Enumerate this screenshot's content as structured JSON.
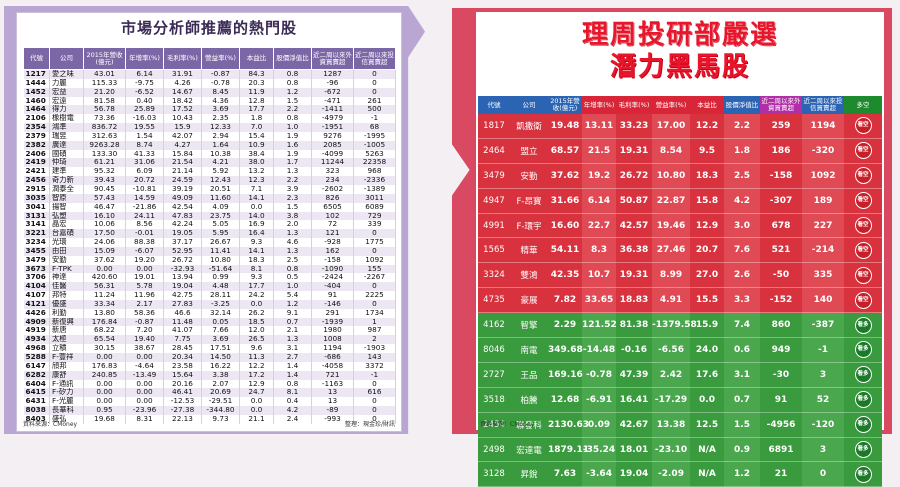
{
  "left": {
    "title": "市場分析師推薦的熱門股",
    "headers": [
      "代號",
      "公司",
      "2015年營收(億元)",
      "年增率(%)",
      "毛利率(%)",
      "營益率(%)",
      "本益比",
      "股價淨值比",
      "近二周以來外資買賣超",
      "近二周以來投信買賣超"
    ],
    "rows": [
      [
        "1217",
        "愛之味",
        "43.01",
        "6.14",
        "31.91",
        "-0.87",
        "84.3",
        "0.8",
        "1287",
        "0"
      ],
      [
        "1444",
        "力麗",
        "115.33",
        "-9.75",
        "4.26",
        "-0.78",
        "20.3",
        "0.8",
        "-96",
        "0"
      ],
      [
        "1452",
        "宏益",
        "21.20",
        "-6.52",
        "14.67",
        "8.45",
        "11.9",
        "1.2",
        "-672",
        "0"
      ],
      [
        "1460",
        "宏遠",
        "81.58",
        "0.40",
        "18.42",
        "4.36",
        "12.8",
        "1.5",
        "-471",
        "261"
      ],
      [
        "1464",
        "得力",
        "56.78",
        "25.89",
        "17.52",
        "3.69",
        "17.7",
        "2.2",
        "-1411",
        "500"
      ],
      [
        "2106",
        "橡樹電",
        "73.36",
        "-16.03",
        "10.43",
        "2.35",
        "1.8",
        "0.8",
        "-4979",
        "-1"
      ],
      [
        "2354",
        "鴻準",
        "836.72",
        "19.55",
        "15.9",
        "12.33",
        "7.0",
        "1.0",
        "-1951",
        "68"
      ],
      [
        "2379",
        "瑞昱",
        "312.63",
        "1.54",
        "42.07",
        "2.94",
        "15.4",
        "1.9",
        "9276",
        "-1995"
      ],
      [
        "2382",
        "廣達",
        "9263.28",
        "8.74",
        "4.27",
        "1.64",
        "10.9",
        "1.6",
        "2085",
        "-1005"
      ],
      [
        "2406",
        "國碩",
        "133.30",
        "41.33",
        "15.84",
        "10.38",
        "38.4",
        "1.9",
        "-4099",
        "5263"
      ],
      [
        "2419",
        "仲琦",
        "61.21",
        "31.06",
        "21.54",
        "4.21",
        "38.0",
        "1.7",
        "11244",
        "22358"
      ],
      [
        "2421",
        "建準",
        "95.32",
        "6.09",
        "21.14",
        "5.92",
        "13.2",
        "1.3",
        "323",
        "968"
      ],
      [
        "2456",
        "奇力新",
        "39.43",
        "20.72",
        "24.59",
        "12.43",
        "12.3",
        "2.2",
        "234",
        "-2336"
      ],
      [
        "2915",
        "潤泰全",
        "90.45",
        "-10.81",
        "39.19",
        "20.51",
        "7.1",
        "3.9",
        "-2602",
        "-1389"
      ],
      [
        "3035",
        "智原",
        "57.43",
        "14.59",
        "49.09",
        "11.60",
        "14.1",
        "2.3",
        "826",
        "3011"
      ],
      [
        "3041",
        "揚智",
        "46.47",
        "-21.86",
        "42.54",
        "4.09",
        "0.0",
        "1.5",
        "6505",
        "6089"
      ],
      [
        "3131",
        "弘塑",
        "16.10",
        "24.11",
        "47.83",
        "23.75",
        "14.0",
        "3.8",
        "102",
        "729"
      ],
      [
        "3141",
        "晶宏",
        "10.06",
        "8.56",
        "42.24",
        "5.05",
        "16.9",
        "2.0",
        "72",
        "339"
      ],
      [
        "3221",
        "台嘉碩",
        "17.50",
        "-0.01",
        "19.05",
        "5.95",
        "16.4",
        "1.3",
        "121",
        "0"
      ],
      [
        "3234",
        "光環",
        "24.06",
        "88.38",
        "37.17",
        "26.67",
        "9.3",
        "4.6",
        "-928",
        "1775"
      ],
      [
        "3455",
        "由田",
        "15.09",
        "-6.07",
        "52.95",
        "11.41",
        "14.1",
        "1.3",
        "162",
        "0"
      ],
      [
        "3479",
        "安勤",
        "37.62",
        "19.20",
        "26.72",
        "10.80",
        "18.3",
        "2.5",
        "-158",
        "1092"
      ],
      [
        "3673",
        "F-TPK",
        "0.00",
        "0.00",
        "-32.93",
        "-51.64",
        "8.1",
        "0.8",
        "-1090",
        "155"
      ],
      [
        "3706",
        "神達",
        "420.60",
        "19.01",
        "13.94",
        "0.99",
        "9.3",
        "0.5",
        "-2424",
        "-2267"
      ],
      [
        "4104",
        "佳醫",
        "56.31",
        "5.78",
        "19.04",
        "4.48",
        "17.7",
        "1.0",
        "-404",
        "0"
      ],
      [
        "4107",
        "邦特",
        "11.24",
        "11.96",
        "42.75",
        "28.11",
        "24.2",
        "5.4",
        "91",
        "2225"
      ],
      [
        "4121",
        "優盛",
        "33.34",
        "2.17",
        "27.83",
        "-3.25",
        "0.0",
        "1.2",
        "-146",
        "0"
      ],
      [
        "4426",
        "利勤",
        "13.80",
        "58.36",
        "46.6",
        "32.14",
        "26.2",
        "9.1",
        "291",
        "1734"
      ],
      [
        "4909",
        "新復興",
        "176.84",
        "-0.87",
        "11.48",
        "0.05",
        "18.5",
        "0.7",
        "-1939",
        "1"
      ],
      [
        "4919",
        "新唐",
        "68.22",
        "7.20",
        "41.07",
        "7.66",
        "12.0",
        "2.1",
        "1980",
        "987"
      ],
      [
        "4934",
        "太極",
        "65.54",
        "19.40",
        "7.75",
        "3.69",
        "26.5",
        "1.3",
        "1008",
        "2"
      ],
      [
        "4968",
        "立積",
        "30.15",
        "38.67",
        "28.45",
        "17.51",
        "9.6",
        "3.1",
        "1194",
        "-1903"
      ],
      [
        "5288",
        "F-豐祥",
        "0.00",
        "0.00",
        "20.34",
        "14.50",
        "11.3",
        "2.7",
        "-686",
        "143"
      ],
      [
        "6147",
        "頎邦",
        "176.83",
        "-4.64",
        "23.58",
        "16.22",
        "12.2",
        "1.4",
        "-4058",
        "3372"
      ],
      [
        "6282",
        "康舒",
        "240.85",
        "-13.49",
        "15.64",
        "3.38",
        "17.2",
        "1.4",
        "721",
        "-1"
      ],
      [
        "6404",
        "F-通訊",
        "0.00",
        "0.00",
        "20.16",
        "2.07",
        "12.9",
        "0.8",
        "-1163",
        "0"
      ],
      [
        "6415",
        "F-矽力",
        "0.00",
        "0.00",
        "46.41",
        "20.69",
        "24.7",
        "8.1",
        "13",
        "616"
      ],
      [
        "6431",
        "F-光麗",
        "0.00",
        "0.00",
        "-12.53",
        "-29.51",
        "0.0",
        "0.4",
        "13",
        "0"
      ],
      [
        "8038",
        "長華科",
        "0.95",
        "-23.96",
        "-27.38",
        "-344.80",
        "0.0",
        "4.2",
        "-89",
        "0"
      ],
      [
        "8403",
        "盛弘",
        "19.68",
        "8.31",
        "22.13",
        "9.73",
        "21.1",
        "2.4",
        "-993",
        "0"
      ]
    ],
    "source": "資料來源：CMoney",
    "compiler": "整理：現金珍/財訊"
  },
  "right": {
    "title_line1": "理周投研部嚴選",
    "title_line2": "潛力黑馬股",
    "headers": [
      "代號",
      "公司",
      "2015年營收(億元)",
      "年增率(%)",
      "毛利率(%)",
      "營益率(%)",
      "本益比",
      "股價淨值比",
      "近二周以來外資買賣超",
      "近二周以來投信買賣超",
      "多空"
    ],
    "rows": [
      [
        "1817",
        "凱撒衛",
        "19.48",
        "13.11",
        "33.23",
        "17.00",
        "12.2",
        "2.2",
        "259",
        "1194",
        "看空"
      ],
      [
        "2464",
        "盟立",
        "68.57",
        "21.5",
        "19.31",
        "8.54",
        "9.5",
        "1.8",
        "186",
        "-320",
        "看空"
      ],
      [
        "3479",
        "安勤",
        "37.62",
        "19.2",
        "26.72",
        "10.80",
        "18.3",
        "2.5",
        "-158",
        "1092",
        "看空"
      ],
      [
        "4947",
        "F-昂寶",
        "31.66",
        "6.14",
        "50.87",
        "22.87",
        "15.8",
        "4.2",
        "-307",
        "189",
        "看空"
      ],
      [
        "4991",
        "F-環宇",
        "16.60",
        "22.7",
        "42.57",
        "19.46",
        "12.9",
        "3.0",
        "678",
        "227",
        "看空"
      ],
      [
        "1565",
        "精華",
        "54.11",
        "8.3",
        "36.38",
        "27.46",
        "20.7",
        "7.6",
        "521",
        "-214",
        "看空"
      ],
      [
        "3324",
        "雙鴻",
        "42.35",
        "10.7",
        "19.31",
        "8.99",
        "27.0",
        "2.6",
        "-50",
        "335",
        "看空"
      ],
      [
        "4735",
        "豪展",
        "7.82",
        "33.65",
        "18.83",
        "4.91",
        "15.5",
        "3.3",
        "-152",
        "140",
        "看空"
      ],
      [
        "4162",
        "智擎",
        "2.29",
        "121.52",
        "81.38",
        "-1379.58",
        "15.9",
        "7.4",
        "860",
        "-387",
        "看多"
      ],
      [
        "8046",
        "南電",
        "349.68",
        "-14.48",
        "-0.16",
        "-6.56",
        "24.0",
        "0.6",
        "949",
        "-1",
        "看多"
      ],
      [
        "2727",
        "王品",
        "169.16",
        "-0.78",
        "47.39",
        "2.42",
        "17.6",
        "3.1",
        "-30",
        "3",
        "看多"
      ],
      [
        "3518",
        "柏騰",
        "12.68",
        "-6.91",
        "16.41",
        "-17.29",
        "0.0",
        "0.7",
        "91",
        "52",
        "看多"
      ],
      [
        "2454",
        "聯發科",
        "2130.63",
        "0.09",
        "42.67",
        "13.38",
        "12.5",
        "1.5",
        "-4956",
        "-120",
        "看多"
      ],
      [
        "2498",
        "宏達電",
        "1879.11",
        "-35.24",
        "18.01",
        "-23.10",
        "N/A",
        "0.9",
        "6891",
        "3",
        "看多"
      ],
      [
        "3128",
        "昇銳",
        "7.63",
        "-3.64",
        "19.04",
        "-2.09",
        "N/A",
        "1.2",
        "21",
        "0",
        "看多"
      ]
    ],
    "source": "資料來源：CMoney"
  },
  "colors": {
    "left_frame": "#b9a6d3",
    "right_frame": "#d94a62",
    "title_red": "#e8162a",
    "bear_row": "#d8323e",
    "bull_row": "#3a9a3e"
  }
}
